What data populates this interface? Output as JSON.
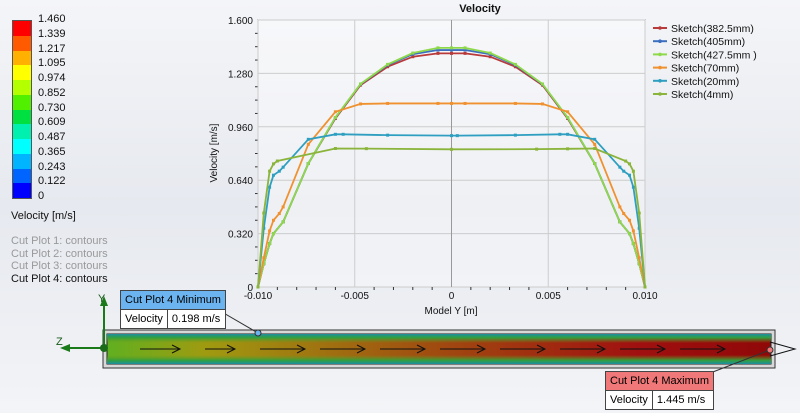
{
  "legend": {
    "ticks": [
      "1.460",
      "1.339",
      "1.217",
      "1.095",
      "0.974",
      "0.852",
      "0.730",
      "0.609",
      "0.487",
      "0.365",
      "0.243",
      "0.122",
      "0"
    ],
    "colors": [
      "#ff0000",
      "#ff5a00",
      "#ffb000",
      "#ffff00",
      "#b4ff00",
      "#50f000",
      "#00e040",
      "#00f0b0",
      "#00ffff",
      "#00b4ff",
      "#0064ff",
      "#0000ff"
    ],
    "quantity": "Velocity [m/s]"
  },
  "cut_plots": [
    {
      "label": "Cut Plot 1: contours",
      "active": false
    },
    {
      "label": "Cut Plot 2: contours",
      "active": false
    },
    {
      "label": "Cut Plot 3: contours",
      "active": false
    },
    {
      "label": "Cut Plot 4: contours",
      "active": true
    }
  ],
  "chart_data": {
    "type": "line",
    "title": "Velocity",
    "xlabel": "Model Y [m]",
    "ylabel": "Velocity [m/s]",
    "xlim": [
      -0.01,
      0.01
    ],
    "ylim": [
      0,
      1.6
    ],
    "xticks": [
      "-0.010",
      "-0.005",
      "0",
      "0.005",
      "0.010"
    ],
    "xtick_values": [
      -0.01,
      -0.005,
      0,
      0.005,
      0.01
    ],
    "yticks": [
      "0",
      "0.320",
      "0.640",
      "0.960",
      "1.280",
      "1.600"
    ],
    "ytick_values": [
      0,
      0.32,
      0.64,
      0.96,
      1.28,
      1.6
    ],
    "grid": true,
    "legend_position": "right",
    "series": [
      {
        "name": "Sketch(382.5mm)",
        "color": "#b83a3a",
        "x": [
          -0.01,
          -0.0097,
          -0.0094,
          -0.0092,
          -0.0087,
          -0.0074,
          -0.006,
          -0.0047,
          -0.0033,
          -0.002,
          -0.0007,
          0,
          0.0007,
          0.002,
          0.0033,
          0.0047,
          0.006,
          0.0074,
          0.0087,
          0.0092,
          0.0094,
          0.0097,
          0.01
        ],
        "y": [
          0,
          0.14,
          0.26,
          0.32,
          0.39,
          0.74,
          1.01,
          1.21,
          1.32,
          1.38,
          1.4,
          1.4,
          1.4,
          1.38,
          1.32,
          1.21,
          1.01,
          0.74,
          0.39,
          0.32,
          0.26,
          0.14,
          0
        ]
      },
      {
        "name": "Sketch(405mm)",
        "color": "#3c6fc0",
        "x": [
          -0.01,
          -0.0097,
          -0.0094,
          -0.0092,
          -0.0087,
          -0.0074,
          -0.006,
          -0.0047,
          -0.0033,
          -0.002,
          -0.0007,
          0,
          0.0007,
          0.002,
          0.0033,
          0.0047,
          0.006,
          0.0074,
          0.0087,
          0.0092,
          0.0094,
          0.0097,
          0.01
        ],
        "y": [
          0,
          0.14,
          0.26,
          0.32,
          0.39,
          0.74,
          1.015,
          1.215,
          1.33,
          1.395,
          1.42,
          1.42,
          1.42,
          1.395,
          1.33,
          1.215,
          1.015,
          0.74,
          0.39,
          0.32,
          0.26,
          0.14,
          0
        ]
      },
      {
        "name": "Sketch(427.5mm )",
        "color": "#8ed94a",
        "x": [
          -0.01,
          -0.0097,
          -0.0094,
          -0.0092,
          -0.0087,
          -0.0074,
          -0.006,
          -0.0047,
          -0.0033,
          -0.002,
          -0.0007,
          0,
          0.0007,
          0.002,
          0.0033,
          0.0047,
          0.006,
          0.0074,
          0.0087,
          0.0092,
          0.0094,
          0.0097,
          0.01
        ],
        "y": [
          0,
          0.14,
          0.26,
          0.32,
          0.39,
          0.74,
          1.016,
          1.217,
          1.334,
          1.402,
          1.433,
          1.433,
          1.433,
          1.402,
          1.334,
          1.217,
          1.016,
          0.74,
          0.39,
          0.32,
          0.26,
          0.14,
          0
        ]
      },
      {
        "name": "Sketch(70mm)",
        "color": "#f0912f",
        "x": [
          -0.01,
          -0.0097,
          -0.0094,
          -0.0092,
          -0.0089,
          -0.0087,
          -0.0074,
          -0.006,
          -0.0047,
          -0.0033,
          -0.0007,
          0,
          0.0007,
          0.0033,
          0.0047,
          0.006,
          0.0074,
          0.0087,
          0.0089,
          0.0092,
          0.0094,
          0.0097,
          0.01
        ],
        "y": [
          0,
          0.175,
          0.336,
          0.4,
          0.44,
          0.48,
          0.855,
          1.05,
          1.097,
          1.1,
          1.1,
          1.1,
          1.1,
          1.1,
          1.097,
          1.05,
          0.855,
          0.48,
          0.44,
          0.4,
          0.336,
          0.175,
          0
        ]
      },
      {
        "name": "Sketch(20mm)",
        "color": "#2e9fc0",
        "x": [
          -0.01,
          -0.0097,
          -0.0094,
          -0.0092,
          -0.0089,
          -0.0087,
          -0.0074,
          -0.006,
          -0.0056,
          -0.0033,
          0,
          0.0003,
          0.0033,
          0.0056,
          0.006,
          0.0074,
          0.0087,
          0.0089,
          0.0092,
          0.0094,
          0.0097,
          0.01
        ],
        "y": [
          0,
          0.352,
          0.598,
          0.67,
          0.694,
          0.718,
          0.885,
          0.915,
          0.915,
          0.91,
          0.907,
          0.907,
          0.91,
          0.915,
          0.915,
          0.885,
          0.718,
          0.694,
          0.67,
          0.598,
          0.352,
          0
        ]
      },
      {
        "name": "Sketch(4mm)",
        "color": "#8ab43a",
        "x": [
          -0.01,
          -0.0097,
          -0.0094,
          -0.0092,
          -0.009,
          -0.006,
          -0.0044,
          0,
          0.0044,
          0.006,
          0.0074,
          0.009,
          0.0092,
          0.0094,
          0.0097,
          0.01
        ],
        "y": [
          0,
          0.443,
          0.694,
          0.738,
          0.755,
          0.83,
          0.829,
          0.825,
          0.826,
          0.828,
          0.83,
          0.755,
          0.738,
          0.694,
          0.443,
          0
        ]
      }
    ]
  },
  "triad": {
    "y": "Y",
    "z": "Z"
  },
  "min_callout": {
    "title": "Cut Plot 4 Minimum",
    "param": "Velocity",
    "value": "0.198 m/s",
    "color": "#6cb4f0"
  },
  "max_callout": {
    "title": "Cut Plot 4 Maximum",
    "param": "Velocity",
    "value": "1.445 m/s",
    "color": "#f07878"
  }
}
